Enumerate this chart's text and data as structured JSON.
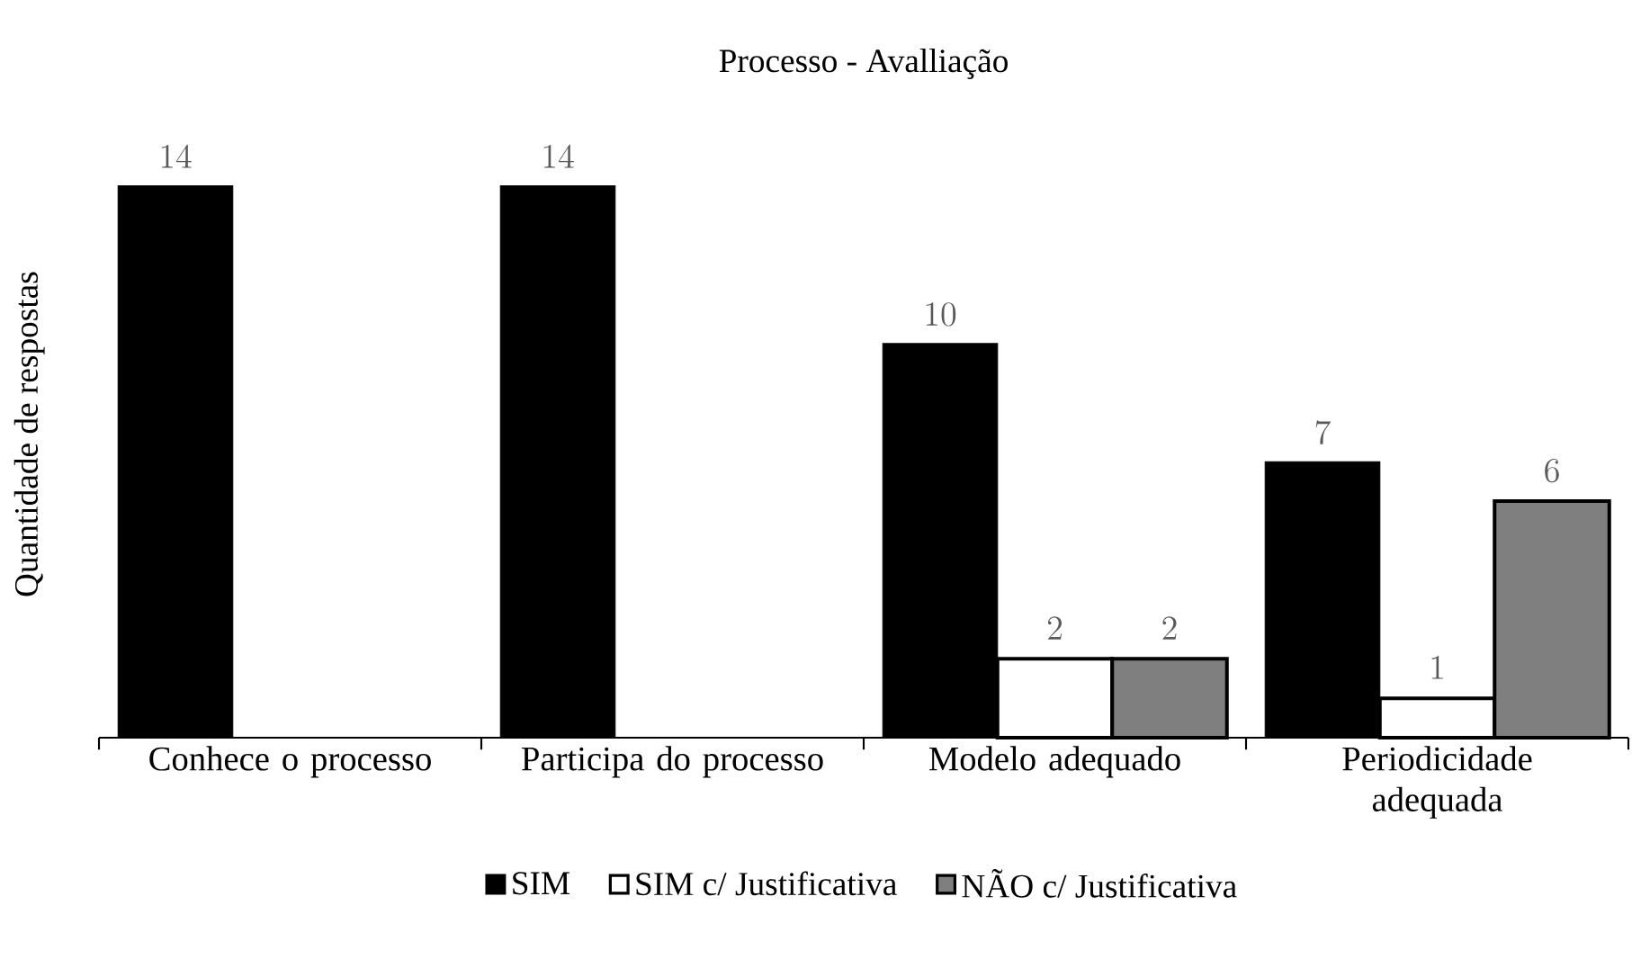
{
  "chart_data": {
    "type": "bar",
    "title": "Processo - Avalliação",
    "ylabel": "Quantidade de respostas",
    "categories": [
      "Conhece o processo",
      "Participa do processo",
      "Modelo adequado",
      "Periodicidade adequada"
    ],
    "series": [
      {
        "name": "SIM",
        "color": "#000000",
        "values": [
          14,
          14,
          10,
          7
        ]
      },
      {
        "name": "SIM c/ Justificativa",
        "color": "#ffffff",
        "values": [
          null,
          null,
          2,
          1
        ]
      },
      {
        "name": "NÃO c/ Justificativa",
        "color": "#7f7f7f",
        "values": [
          null,
          null,
          2,
          6
        ]
      }
    ],
    "data_labels": true,
    "legend": "bottom",
    "grid": false,
    "tick_labels": "x"
  }
}
